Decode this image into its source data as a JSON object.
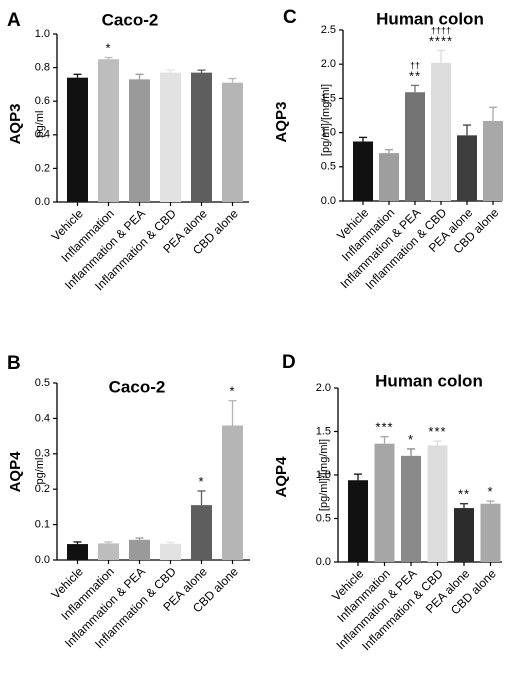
{
  "chart_data": [
    {
      "panel": "A",
      "type": "bar",
      "title": "Caco-2",
      "ylabel": "pg/ml",
      "ylabel_side": "AQP3",
      "ylim": [
        0,
        1.0
      ],
      "yticks": [
        "0.0",
        "0.2",
        "0.4",
        "0.6",
        "0.8",
        "1.0"
      ],
      "categories": [
        "Vehicle",
        "Inflammation",
        "Inflammation & PEA",
        "Inflammation & CBD",
        "PEA alone",
        "CBD alone"
      ],
      "values": [
        0.74,
        0.85,
        0.73,
        0.77,
        0.77,
        0.71
      ],
      "errors": [
        0.02,
        0.01,
        0.03,
        0.015,
        0.015,
        0.025
      ],
      "significance": [
        "",
        "*",
        "",
        "",
        "",
        ""
      ],
      "significance_secondary": [
        "",
        "",
        "",
        "",
        "",
        ""
      ],
      "bar_colors": [
        "#111111",
        "#bdbdbd",
        "#9a9a9a",
        "#e2e2e2",
        "#5e5e5e",
        "#b5b5b5"
      ]
    },
    {
      "panel": "C",
      "type": "bar",
      "title": "Human colon",
      "ylabel": "[pg/ml]/[mg/ml]",
      "ylabel_side": "AQP3",
      "ylim": [
        0,
        2.5
      ],
      "yticks": [
        "0.0",
        "0.5",
        "1.0",
        "1.5",
        "2.0",
        "2.5"
      ],
      "categories": [
        "Vehicle",
        "Inflammation",
        "Inflammation & PEA",
        "Inflammation & CBD",
        "PEA alone",
        "CBD alone"
      ],
      "values": [
        0.87,
        0.7,
        1.59,
        2.02,
        0.96,
        1.17
      ],
      "errors": [
        0.06,
        0.05,
        0.1,
        0.18,
        0.15,
        0.2
      ],
      "significance": [
        "",
        "",
        "**",
        "****",
        "",
        ""
      ],
      "significance_secondary": [
        "",
        "",
        "††",
        "††††",
        "",
        ""
      ],
      "bar_colors": [
        "#111111",
        "#9e9e9e",
        "#737373",
        "#dcdcdc",
        "#3e3e3e",
        "#a8a8a8"
      ]
    },
    {
      "panel": "B",
      "type": "bar",
      "title": "Caco-2",
      "ylabel": "pg/ml",
      "ylabel_side": "AQP4",
      "ylim": [
        0,
        0.5
      ],
      "yticks": [
        "0.0",
        "0.1",
        "0.2",
        "0.3",
        "0.4",
        "0.5"
      ],
      "categories": [
        "Vehicle",
        "Inflammation",
        "Inflammation & PEA",
        "Inflammation & CBD",
        "PEA alone",
        "CBD alone"
      ],
      "values": [
        0.045,
        0.047,
        0.057,
        0.046,
        0.155,
        0.38
      ],
      "errors": [
        0.006,
        0.004,
        0.005,
        0.004,
        0.04,
        0.07
      ],
      "significance": [
        "",
        "",
        "",
        "",
        "*",
        "*"
      ],
      "significance_secondary": [
        "",
        "",
        "",
        "",
        "",
        ""
      ],
      "bar_colors": [
        "#111111",
        "#bdbdbd",
        "#9a9a9a",
        "#e2e2e2",
        "#5e5e5e",
        "#b5b5b5"
      ]
    },
    {
      "panel": "D",
      "type": "bar",
      "title": "Human colon",
      "ylabel": "[pg/ml]/[mg/ml]",
      "ylabel_side": "AQP4",
      "ylim": [
        0,
        2.0
      ],
      "yticks": [
        "0.0",
        "0.5",
        "1.0",
        "1.5",
        "2.0"
      ],
      "categories": [
        "Vehicle",
        "Inflammation",
        "Inflammation & PEA",
        "Inflammation & CBD",
        "PEA alone",
        "CBD alone"
      ],
      "values": [
        0.94,
        1.36,
        1.22,
        1.34,
        0.62,
        0.67
      ],
      "errors": [
        0.07,
        0.08,
        0.08,
        0.05,
        0.05,
        0.03
      ],
      "significance": [
        "",
        "***",
        "*",
        "***",
        "**",
        "*"
      ],
      "significance_secondary": [
        "",
        "",
        "",
        "",
        "",
        ""
      ],
      "bar_colors": [
        "#111111",
        "#a6a6a6",
        "#8a8a8a",
        "#dcdcdc",
        "#2c2c2c",
        "#a8a8a8"
      ]
    }
  ]
}
